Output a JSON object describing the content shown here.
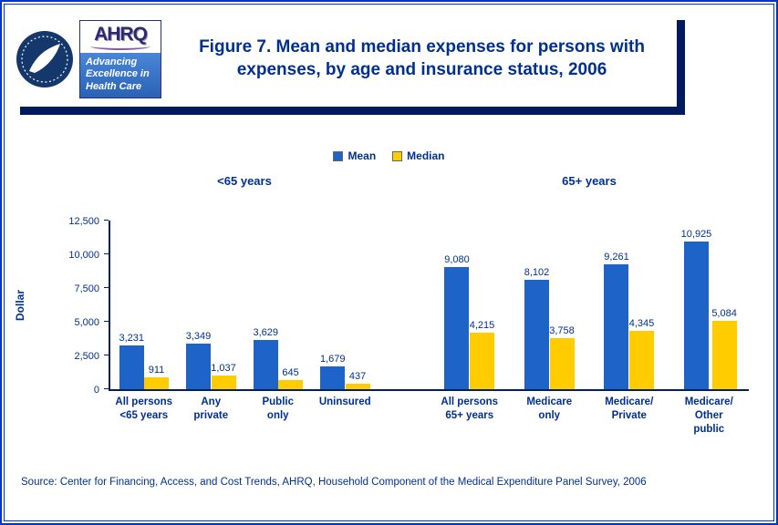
{
  "header": {
    "title_lines": [
      "Figure 7. Mean and median expenses for persons with",
      "expenses, by age and insurance status, 2006"
    ],
    "logo": {
      "name": "AHRQ",
      "tagline_lines": [
        "Advancing",
        "Excellence in",
        "Health Care"
      ]
    }
  },
  "footer": {
    "source": "Source: Center for Financing, Access, and Cost Trends, AHRQ, Household Component of the Medical Expenditure Panel Survey, 2006"
  },
  "colors": {
    "accent_navy": "#00308F",
    "page_border_blue": "#0033cc",
    "header_shadow_navy": "#001a5e",
    "axis": "#002060"
  },
  "chart_data": {
    "type": "bar",
    "title": "Figure 7. Mean and median expenses for persons with expenses, by age and insurance status, 2006",
    "xlabel": "",
    "ylabel": "Dollar",
    "ylim": [
      0,
      12500
    ],
    "yticks": [
      0,
      2500,
      5000,
      7500,
      10000,
      12500
    ],
    "grid": false,
    "legend_position": "top-center",
    "group_labels": [
      "<65 years",
      "65+ years"
    ],
    "group_sizes": [
      4,
      4
    ],
    "categories": [
      "All persons <65 years",
      "Any private",
      "Public only",
      "Uninsured",
      "All persons 65+ years",
      "Medicare only",
      "Medicare/Private",
      "Medicare/Other public"
    ],
    "category_label_lines": [
      [
        "All persons",
        "<65 years"
      ],
      [
        "Any",
        "private"
      ],
      [
        "Public",
        "only"
      ],
      [
        "Uninsured"
      ],
      [
        "All persons",
        "65+ years"
      ],
      [
        "Medicare",
        "only"
      ],
      [
        "Medicare/",
        "Private"
      ],
      [
        "Medicare/",
        "Other",
        "public"
      ]
    ],
    "series": [
      {
        "name": "Mean",
        "color": "#1E64C8",
        "values": [
          3231,
          3349,
          3629,
          1679,
          9080,
          8102,
          9261,
          10925
        ]
      },
      {
        "name": "Median",
        "color": "#FFCC00",
        "values": [
          911,
          1037,
          645,
          437,
          4215,
          3758,
          4345,
          5084
        ]
      }
    ]
  }
}
